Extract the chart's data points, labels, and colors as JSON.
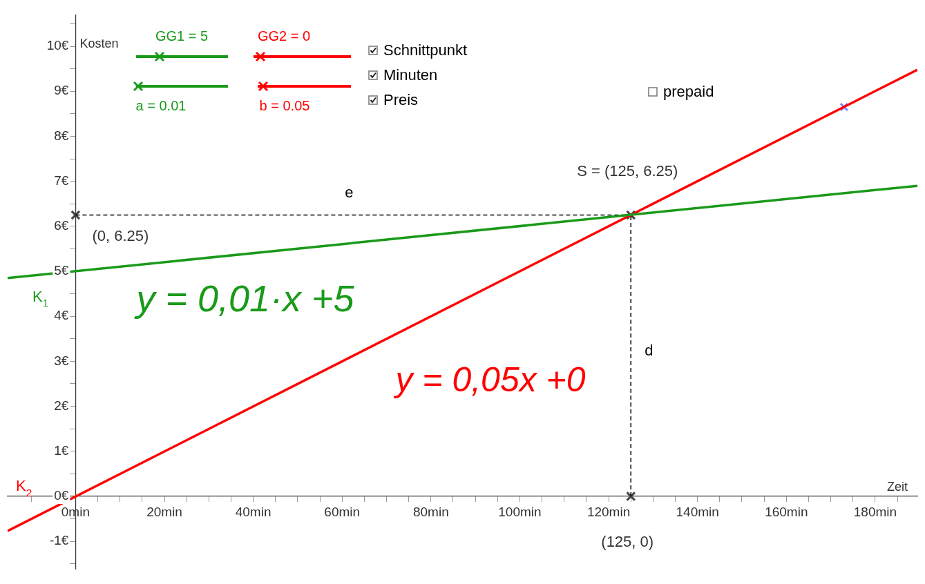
{
  "chart_data": {
    "type": "line",
    "xlabel": "Zeit",
    "ylabel": "Kosten",
    "marker": "none",
    "legend": false,
    "xlim": [
      -15.3,
      189.5
    ],
    "ylim": [
      -1.62,
      10.7
    ],
    "xticks": [
      {
        "value": -10,
        "label": null
      },
      {
        "value": -5,
        "label": null
      },
      {
        "value": 0,
        "label": "0min"
      },
      {
        "value": 5,
        "label": null
      },
      {
        "value": 10,
        "label": null
      },
      {
        "value": 15,
        "label": null
      },
      {
        "value": 20,
        "label": "20min"
      },
      {
        "value": 25,
        "label": null
      },
      {
        "value": 30,
        "label": null
      },
      {
        "value": 35,
        "label": null
      },
      {
        "value": 40,
        "label": "40min"
      },
      {
        "value": 45,
        "label": null
      },
      {
        "value": 50,
        "label": null
      },
      {
        "value": 55,
        "label": null
      },
      {
        "value": 60,
        "label": "60min"
      },
      {
        "value": 65,
        "label": null
      },
      {
        "value": 70,
        "label": null
      },
      {
        "value": 75,
        "label": null
      },
      {
        "value": 80,
        "label": "80min"
      },
      {
        "value": 85,
        "label": null
      },
      {
        "value": 90,
        "label": null
      },
      {
        "value": 95,
        "label": null
      },
      {
        "value": 100,
        "label": "100min"
      },
      {
        "value": 105,
        "label": null
      },
      {
        "value": 110,
        "label": null
      },
      {
        "value": 115,
        "label": null
      },
      {
        "value": 120,
        "label": "120min"
      },
      {
        "value": 125,
        "label": null
      },
      {
        "value": 130,
        "label": null
      },
      {
        "value": 135,
        "label": null
      },
      {
        "value": 140,
        "label": "140min"
      },
      {
        "value": 145,
        "label": null
      },
      {
        "value": 150,
        "label": null
      },
      {
        "value": 155,
        "label": null
      },
      {
        "value": 160,
        "label": "160min"
      },
      {
        "value": 165,
        "label": null
      },
      {
        "value": 170,
        "label": null
      },
      {
        "value": 175,
        "label": null
      },
      {
        "value": 180,
        "label": "180min"
      },
      {
        "value": 185,
        "label": null
      }
    ],
    "yticks": [
      {
        "value": -1.5,
        "label": null
      },
      {
        "value": -1,
        "label": "-1€"
      },
      {
        "value": -0.5,
        "label": null
      },
      {
        "value": 0,
        "label": "0€"
      },
      {
        "value": 0.5,
        "label": null
      },
      {
        "value": 1,
        "label": "1€"
      },
      {
        "value": 1.5,
        "label": null
      },
      {
        "value": 2,
        "label": "2€"
      },
      {
        "value": 2.5,
        "label": null
      },
      {
        "value": 3,
        "label": "3€"
      },
      {
        "value": 3.5,
        "label": null
      },
      {
        "value": 4,
        "label": "4€"
      },
      {
        "value": 4.5,
        "label": null
      },
      {
        "value": 5,
        "label": "5€"
      },
      {
        "value": 5.5,
        "label": null
      },
      {
        "value": 6,
        "label": "6€"
      },
      {
        "value": 6.5,
        "label": null
      },
      {
        "value": 7,
        "label": "7€"
      },
      {
        "value": 7.5,
        "label": null
      },
      {
        "value": 8,
        "label": "8€"
      },
      {
        "value": 8.5,
        "label": null
      },
      {
        "value": 9,
        "label": "9€"
      },
      {
        "value": 9.5,
        "label": null
      },
      {
        "value": 10,
        "label": "10€"
      },
      {
        "value": 10.5,
        "label": null
      }
    ],
    "series": [
      {
        "name": "K$_{1}$",
        "type": "line",
        "color": "#1a9a1a",
        "x": [
          -15.3,
          189.5
        ],
        "values": [
          4.85,
          6.9
        ]
      },
      {
        "name": "K$_{2}$",
        "type": "line",
        "color": "#ff0000",
        "x": [
          -15.3,
          189.5
        ],
        "values": [
          -0.77,
          9.48
        ]
      },
      {
        "name": "e",
        "type": "line",
        "color": "#000000",
        "line_style": "dashed",
        "x": [
          0,
          125
        ],
        "values": [
          6.25,
          6.25
        ]
      },
      {
        "name": "d",
        "type": "line",
        "color": "#000000",
        "line_style": "dashed",
        "x": [
          125,
          125
        ],
        "values": [
          0,
          6.25
        ]
      },
      {
        "type": "scatter",
        "color": "#444444",
        "marker": "cross",
        "x": [
          0,
          125,
          125
        ],
        "values": [
          6.25,
          6.25,
          0
        ]
      },
      {
        "type": "scatter",
        "color": "#7f7fff",
        "marker": "cross",
        "x": [
          173
        ],
        "values": [
          8.65
        ]
      }
    ],
    "annotations": [
      "GG1 = 5",
      "GG2 = 0",
      "a = 0.01",
      "b = 0.05",
      "Schnittpunkt",
      "Minuten",
      "Preis",
      "prepaid",
      "y = 0,01·x  +5",
      "y = 0,05x  +0",
      "S = (125, 6.25)",
      "(0, 6.25)",
      "(125, 0)"
    ]
  }
}
